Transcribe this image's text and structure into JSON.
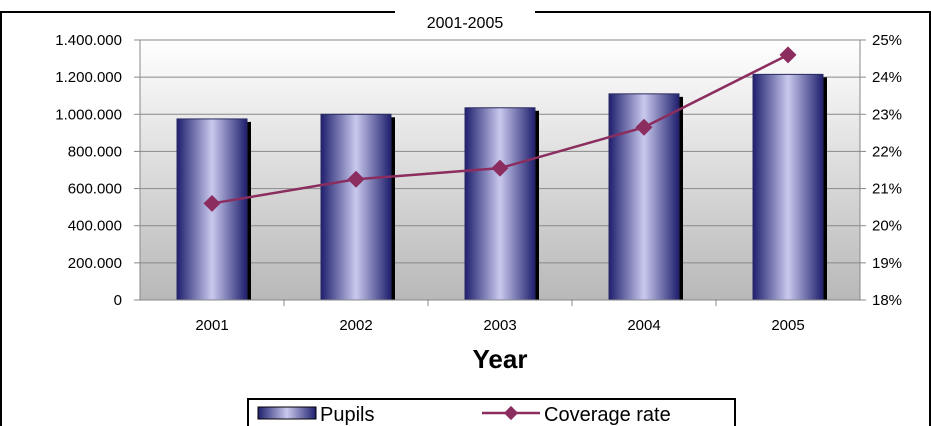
{
  "chart_data": {
    "type": "bar",
    "title": "2001-2005",
    "xlabel": "Year",
    "ylabel": "",
    "y2label": "",
    "categories": [
      "2001",
      "2002",
      "2003",
      "2004",
      "2005"
    ],
    "series": [
      {
        "name": "Pupils",
        "type": "bar",
        "axis": "left",
        "values": [
          975000,
          1000000,
          1035000,
          1110000,
          1215000
        ]
      },
      {
        "name": "Coverage rate",
        "type": "line",
        "axis": "right",
        "values": [
          20.6,
          21.25,
          21.55,
          22.65,
          24.6
        ]
      }
    ],
    "ylim": [
      0,
      1400000
    ],
    "y2lim": [
      18,
      25
    ],
    "yticks": [
      "0",
      "200.000",
      "400.000",
      "600.000",
      "800.000",
      "1.000.000",
      "1.200.000",
      "1.400.000"
    ],
    "y2ticks": [
      "18%",
      "19%",
      "20%",
      "21%",
      "22%",
      "23%",
      "24%",
      "25%"
    ],
    "grid": true,
    "legend": "bottom",
    "colors": {
      "bar_dark": "#1f1f6e",
      "bar_light": "#c9c9ee",
      "line": "#8b2d5e",
      "plot_bg_top": "#ffffff",
      "plot_bg_bottom": "#b8b8b8"
    }
  }
}
